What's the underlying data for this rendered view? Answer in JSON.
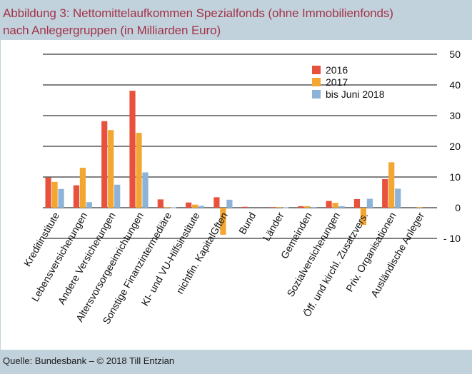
{
  "title_line1": "Abbildung 3: Nettomittelaufkommen Spezialfonds (ohne Immobilienfonds)",
  "title_line2": "nach Anlegergruppen (in Milliarden Euro)",
  "source": "Quelle: Bundesbank – © 2018 Till Entzian",
  "colors": {
    "series": [
      "#e8513c",
      "#f4a633",
      "#8db3d8"
    ],
    "title": "#a2334a",
    "frame": "#c2d2dc",
    "grid": "#000000"
  },
  "chart_data": {
    "type": "bar",
    "title": "Abbildung 3: Nettomittelaufkommen Spezialfonds (ohne Immobilienfonds) nach Anlegergruppen (in Milliarden Euro)",
    "xlabel": "",
    "ylabel": "",
    "ylim": [
      -10,
      50
    ],
    "yticks": [
      50,
      40,
      30,
      20,
      10,
      0,
      -10
    ],
    "ytick_labels": [
      "50",
      "40",
      "30",
      "20",
      "10",
      "0",
      "- 10"
    ],
    "y_axis_side": "right",
    "grid": true,
    "legend_position": "top-right",
    "categories": [
      "Kreditinstitute",
      "Lebensversicherungen",
      "Andere Versicherungen",
      "Altersvorsorgeeinrichtungen",
      "Sonstige Finanzintermediäre",
      "KI- und VU-Hilfsinstitute",
      "nichtfin. KapitalGften",
      "Bund",
      "Länder",
      "Gemeinden",
      "Sozialversicherungen",
      "Öff. und kirchl. Zusatzvers.",
      "Priv. Organisationen",
      "Ausländische Anleger"
    ],
    "series": [
      {
        "name": "2016",
        "values": [
          9.8,
          7.3,
          28.2,
          38.1,
          2.7,
          1.7,
          3.4,
          0.3,
          0.2,
          0.5,
          2.2,
          2.8,
          9.3,
          0.0
        ]
      },
      {
        "name": "2017",
        "values": [
          8.4,
          13.0,
          25.3,
          24.4,
          0.2,
          1.0,
          -8.8,
          0.0,
          0.2,
          0.5,
          1.6,
          -5.6,
          14.8,
          0.2
        ]
      },
      {
        "name": "bis Juni 2018",
        "values": [
          6.1,
          1.8,
          7.5,
          11.5,
          0.1,
          0.6,
          2.6,
          0.0,
          0.1,
          0.2,
          0.5,
          2.9,
          6.2,
          0.0
        ]
      }
    ]
  }
}
